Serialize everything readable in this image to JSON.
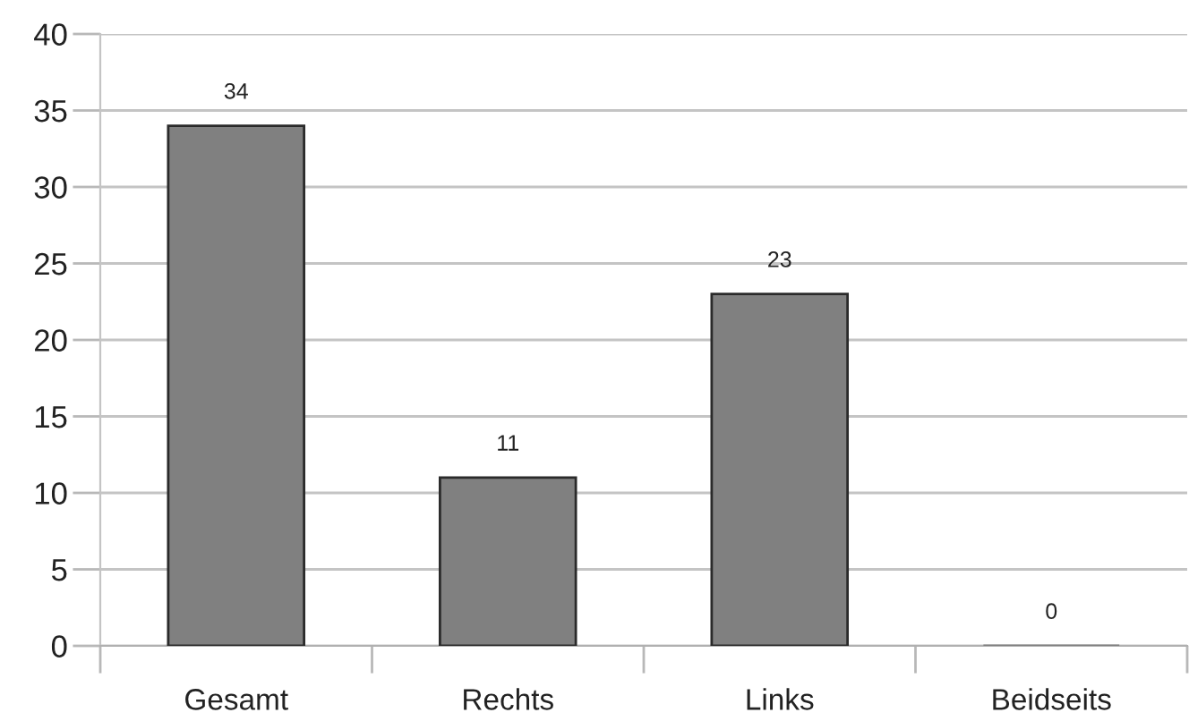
{
  "chart_data": {
    "type": "bar",
    "categories": [
      "Gesamt",
      "Rechts",
      "Links",
      "Beidseits"
    ],
    "values": [
      34,
      11,
      23,
      0
    ],
    "color": "#808080",
    "ylim": [
      0,
      40
    ],
    "yticks": [
      0,
      5,
      10,
      15,
      20,
      25,
      30,
      35,
      40
    ],
    "grid": "y",
    "data_labels": true,
    "legend": false
  }
}
